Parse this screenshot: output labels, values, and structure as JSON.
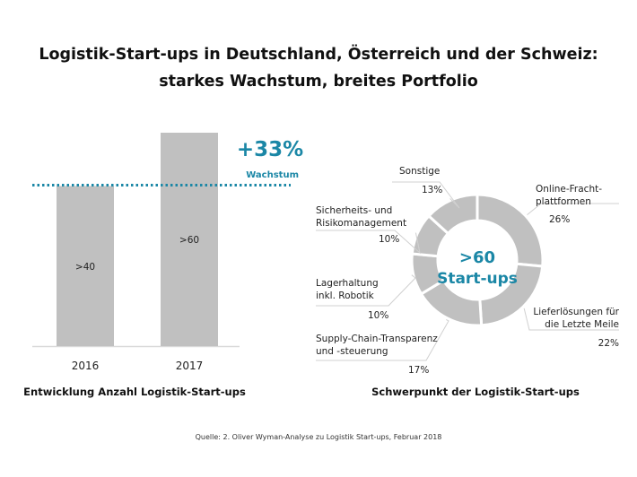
{
  "title_lines": [
    "Logistik-Start-ups in Deutschland, Österreich und der Schweiz:",
    "starkes Wachstum, breites Portfolio"
  ],
  "source": "Quelle: 2. Oliver Wyman-Analyse zu Logistik Start-ups, Februar 2018",
  "colors": {
    "accent": "#1b87a6",
    "bar": "#c0c0c0",
    "slice": "#c0c0c0",
    "leader": "#d0d0d0"
  },
  "chart_data": [
    {
      "type": "bar",
      "title": "Entwicklung Anzahl Logistik-Start-ups",
      "categories": [
        "2016",
        "2017"
      ],
      "values": [
        45,
        60
      ],
      "data_labels": [
        ">40",
        ">60"
      ],
      "reference_line": {
        "style": "dotted",
        "level": 45
      },
      "annotation": {
        "value": "+33%",
        "label": "Wachstum"
      },
      "grid": false
    },
    {
      "type": "pie",
      "variant": "donut",
      "title": "Schwerpunkt der Logistik-Start-ups",
      "center_label": [
        ">60",
        "Start-ups"
      ],
      "slices": [
        {
          "label": [
            "Online-Fracht-",
            "plattformen"
          ],
          "value": 26,
          "value_label": "26%"
        },
        {
          "label": [
            "Lieferlösungen für",
            "die Letzte Meile"
          ],
          "value": 22,
          "value_label": "22%"
        },
        {
          "label": [
            "Supply-Chain-Transparenz",
            "und -steuerung"
          ],
          "value": 17,
          "value_label": "17%"
        },
        {
          "label": [
            "Lagerhaltung",
            "inkl. Robotik"
          ],
          "value": 10,
          "value_label": "10%"
        },
        {
          "label": [
            "Sicherheits- und",
            "Risikomanagement"
          ],
          "value": 10,
          "value_label": "10%"
        },
        {
          "label": [
            "Sonstige"
          ],
          "value": 13,
          "value_label": "13%"
        }
      ]
    }
  ]
}
